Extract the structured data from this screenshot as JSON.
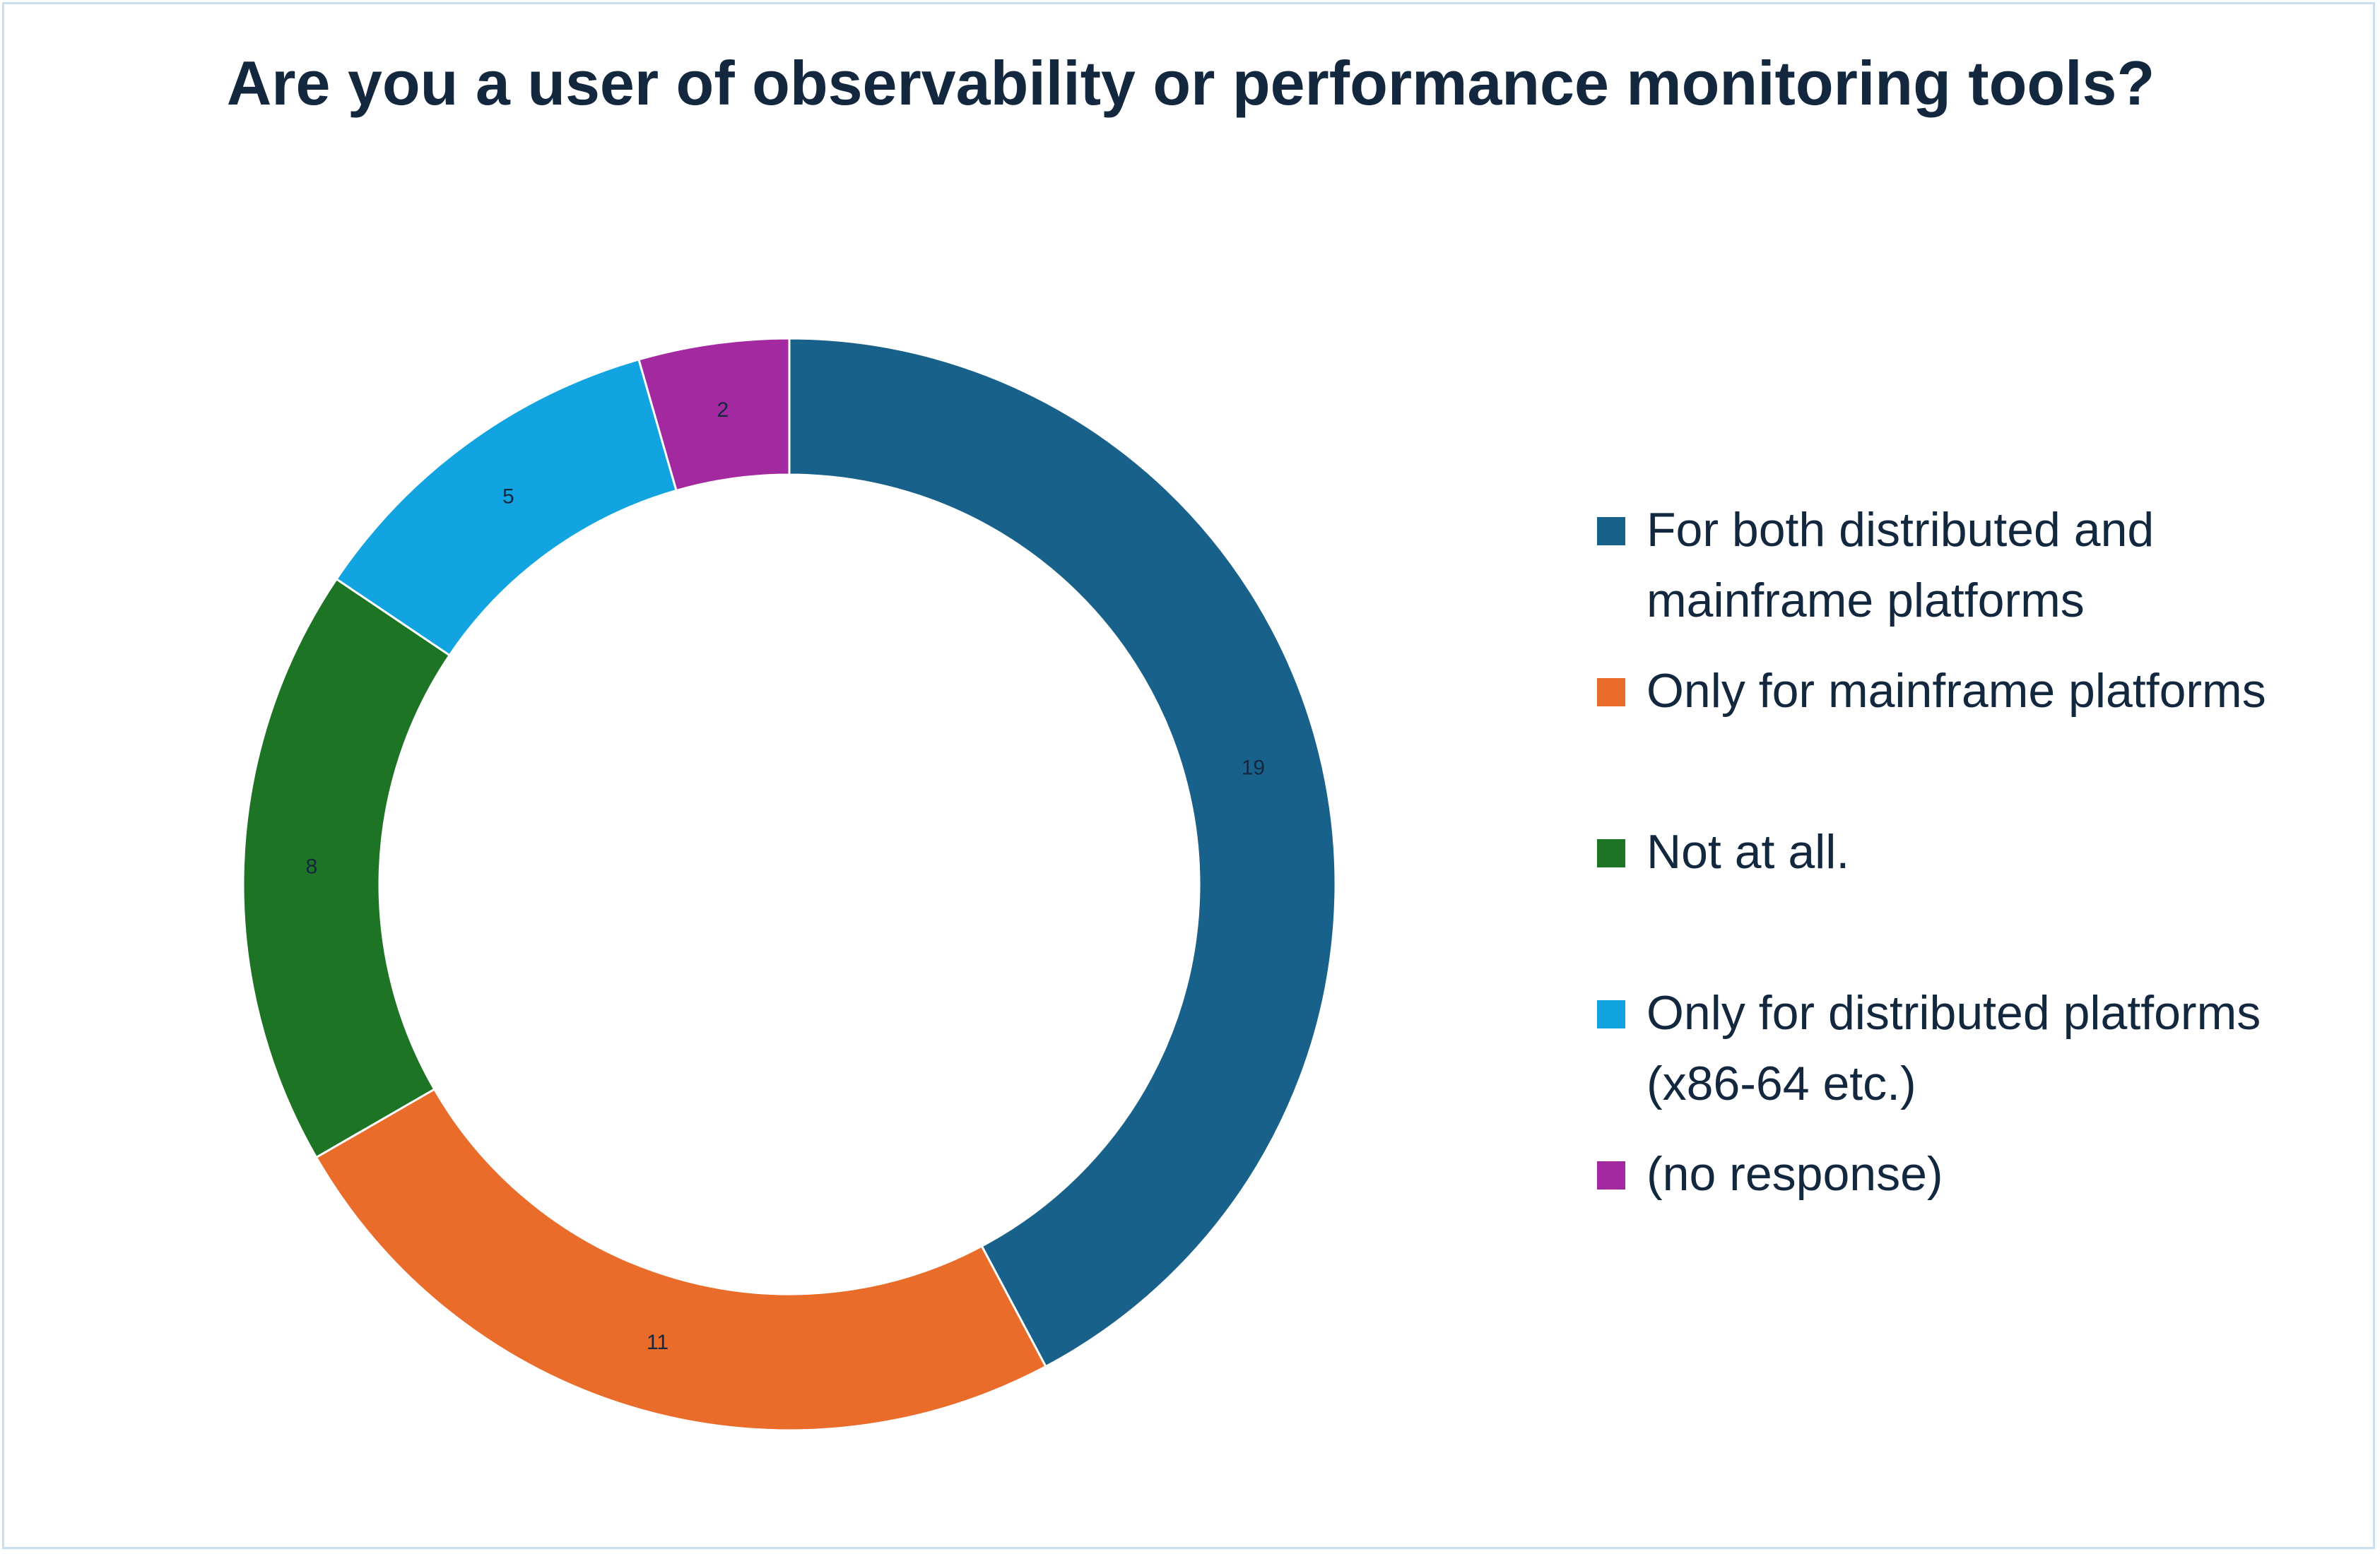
{
  "chart_data": {
    "type": "donut",
    "title": "Are you a user of observability or performance monitoring tools?",
    "categories": [
      "For both distributed and mainframe platforms",
      "Only for  mainframe platforms",
      "Not at all.",
      "Only for distributed platforms (x86-64 etc.)",
      "(no response)"
    ],
    "values": [
      19,
      11,
      8,
      5,
      2
    ],
    "colors": [
      "#18618a",
      "#ea6c2a",
      "#1c7424",
      "#12a4e0",
      "#a2299f"
    ],
    "legend": "right"
  }
}
